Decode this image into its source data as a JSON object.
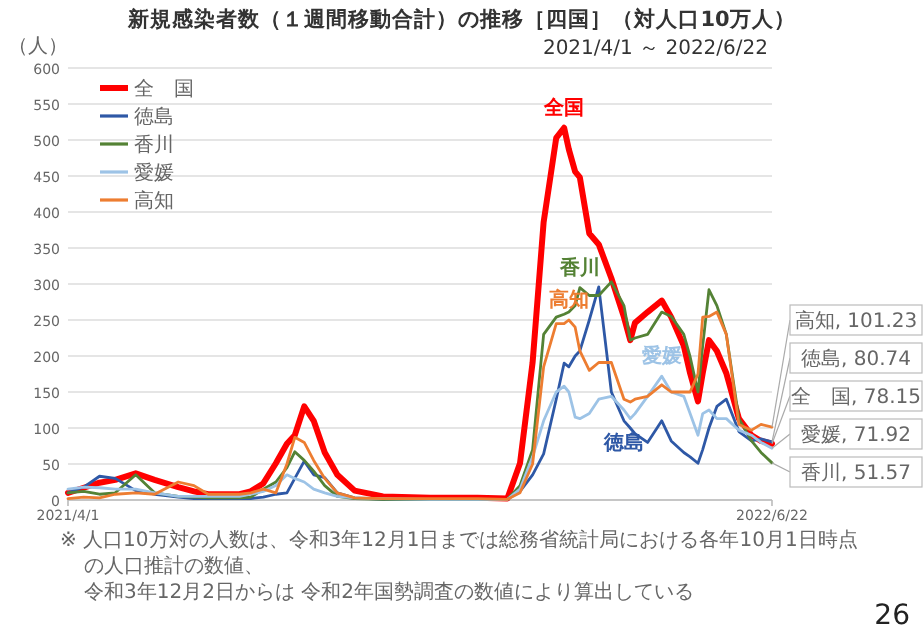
{
  "chart_data": {
    "type": "line",
    "title": "新規感染者数（１週間移動合計）の推移［四国］（対人口10万人）",
    "subtitle": "2021/4/1 ～ 2022/6/22",
    "ylabel": "（人）",
    "x": [
      "2021-04-01",
      "2021-04-11",
      "2021-04-21",
      "2021-05-01",
      "2021-05-14",
      "2021-05-26",
      "2021-06-10",
      "2021-06-20",
      "2021-06-29",
      "2021-07-10",
      "2021-07-19",
      "2021-07-26",
      "2021-08-03",
      "2021-08-11",
      "2021-08-18",
      "2021-08-23",
      "2021-08-29",
      "2021-09-04",
      "2021-09-11",
      "2021-09-19",
      "2021-09-30",
      "2021-10-18",
      "2021-11-17",
      "2021-12-17",
      "2022-01-05",
      "2022-01-13",
      "2022-01-21",
      "2022-01-28",
      "2022-02-05",
      "2022-02-10",
      "2022-02-13",
      "2022-02-17",
      "2022-02-20",
      "2022-02-26",
      "2022-03-04",
      "2022-03-12",
      "2022-03-20",
      "2022-03-24",
      "2022-03-27",
      "2022-04-04",
      "2022-04-13",
      "2022-04-19",
      "2022-04-27",
      "2022-05-01",
      "2022-05-06",
      "2022-05-09",
      "2022-05-13",
      "2022-05-18",
      "2022-05-24",
      "2022-06-01",
      "2022-06-09",
      "2022-06-15",
      "2022-06-22"
    ],
    "series": [
      {
        "name": "全　国",
        "color": "#ff0000",
        "values": [
          10,
          17,
          24,
          28,
          37,
          28,
          18,
          12,
          8,
          8,
          8,
          12,
          23,
          51,
          78,
          90,
          130,
          110,
          66,
          35,
          13,
          5,
          3,
          3,
          2,
          51,
          191,
          386,
          503,
          517,
          487,
          456,
          448,
          370,
          355,
          308,
          254,
          222,
          246,
          261,
          277,
          254,
          214,
          176,
          137,
          176,
          222,
          207,
          176,
          113,
          90,
          82,
          78.15
        ]
      },
      {
        "name": "徳島",
        "color": "#2e58a6",
        "values": [
          10,
          18,
          33,
          30,
          13,
          8,
          4,
          2,
          2,
          2,
          2,
          2,
          4,
          8,
          10,
          30,
          54,
          35,
          31,
          10,
          3,
          1,
          1,
          1,
          1,
          12,
          35,
          64,
          140,
          190,
          185,
          200,
          207,
          250,
          296,
          150,
          110,
          100,
          92,
          80,
          110,
          82,
          66,
          60,
          51,
          70,
          100,
          130,
          140,
          95,
          82,
          85,
          80.74
        ]
      },
      {
        "name": "香川",
        "color": "#548235",
        "values": [
          10,
          12,
          8,
          10,
          35,
          10,
          5,
          4,
          3,
          3,
          3,
          4,
          15,
          25,
          45,
          67,
          55,
          40,
          20,
          5,
          2,
          1,
          1,
          1,
          1,
          20,
          70,
          230,
          254,
          258,
          261,
          270,
          295,
          284,
          284,
          303,
          270,
          222,
          225,
          230,
          261,
          255,
          230,
          199,
          150,
          214,
          292,
          270,
          230,
          113,
          82,
          66,
          51.57
        ]
      },
      {
        "name": "愛媛",
        "color": "#9dc3e6",
        "values": [
          15,
          18,
          17,
          15,
          15,
          10,
          5,
          5,
          5,
          5,
          5,
          8,
          12,
          20,
          35,
          30,
          25,
          15,
          10,
          5,
          3,
          2,
          1,
          1,
          1,
          15,
          60,
          110,
          150,
          158,
          150,
          115,
          113,
          120,
          140,
          144,
          125,
          113,
          120,
          144,
          172,
          150,
          144,
          120,
          90,
          120,
          125,
          113,
          113,
          97,
          90,
          80,
          71.92
        ]
      },
      {
        "name": "高知",
        "color": "#ed7d31",
        "values": [
          2,
          4,
          3,
          8,
          10,
          8,
          25,
          20,
          8,
          8,
          8,
          10,
          15,
          10,
          50,
          87,
          80,
          55,
          30,
          10,
          3,
          2,
          2,
          2,
          1,
          10,
          50,
          185,
          245,
          245,
          250,
          240,
          207,
          180,
          191,
          191,
          140,
          136,
          140,
          144,
          160,
          150,
          150,
          150,
          175,
          254,
          255,
          261,
          230,
          105,
          97,
          105,
          101.23
        ]
      }
    ],
    "xlim": [
      "2021-04-01",
      "2022-06-22"
    ],
    "ylim": [
      0,
      600
    ],
    "yticks": [
      0,
      50,
      100,
      150,
      200,
      250,
      300,
      350,
      400,
      450,
      500,
      550,
      600
    ],
    "xticks": [
      {
        "value": "2021-04-01",
        "label": "2021/4/1"
      },
      {
        "value": "2022-06-22",
        "label": "2022/6/22"
      }
    ],
    "grid": "y",
    "legend": "top left",
    "annotations": [
      {
        "text": "全国",
        "x": "2022-02-10",
        "y": 517
      },
      {
        "text": "香川",
        "x": "2022-02-20",
        "y": 295
      },
      {
        "text": "高知",
        "x": "2022-02-13",
        "y": 250
      },
      {
        "text": "愛媛",
        "x": "2022-04-13",
        "y": 172
      },
      {
        "text": "徳島",
        "x": "2022-03-20",
        "y": 110
      },
      {
        "text": "高知, 101.23",
        "x": "2022-06-22",
        "y": 101.23
      },
      {
        "text": "徳島, 80.74",
        "x": "2022-06-22",
        "y": 80.74
      },
      {
        "text": "全　国, 78.15",
        "x": "2022-06-22",
        "y": 78.15
      },
      {
        "text": "愛媛, 71.92",
        "x": "2022-06-22",
        "y": 71.92
      },
      {
        "text": "香川, 51.57",
        "x": "2022-06-22",
        "y": 51.57
      },
      "※ 人口10万対の人数は、令和3年12月1日までは総務省統計局における各年10月1日時点の人口推計の数値、",
      "令和3年12月2日からは 令和2年国勢調査の数値により算出している",
      "26"
    ]
  }
}
